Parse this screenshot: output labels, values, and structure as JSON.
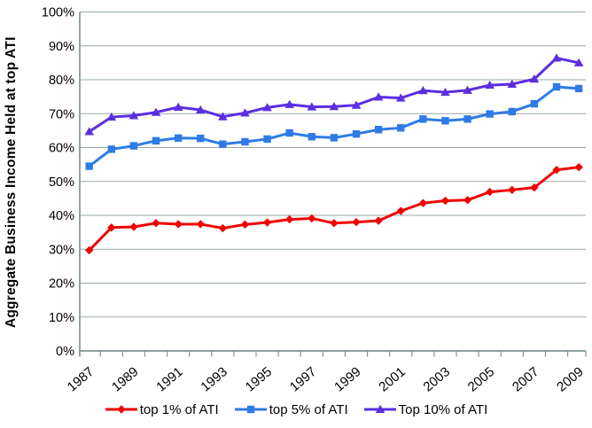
{
  "chart_data": {
    "type": "line",
    "title": "",
    "ylabel": "Aggregate Business Income Held at top ATI",
    "xlabel": "",
    "x": [
      1987,
      1988,
      1989,
      1990,
      1991,
      1992,
      1993,
      1994,
      1995,
      1996,
      1997,
      1998,
      1999,
      2000,
      2001,
      2002,
      2003,
      2004,
      2005,
      2006,
      2007,
      2008,
      2009
    ],
    "x_tick_labels": [
      "1987",
      "1989",
      "1991",
      "1993",
      "1995",
      "1997",
      "1999",
      "2001",
      "2003",
      "2005",
      "2007",
      "2009"
    ],
    "y_tick_labels": [
      "0%",
      "10%",
      "20%",
      "30%",
      "40%",
      "50%",
      "60%",
      "70%",
      "80%",
      "90%",
      "100%"
    ],
    "ylim": [
      0,
      100
    ],
    "grid": "horizontal",
    "legend_position": "bottom",
    "axis_color": "#7E9494",
    "grid_color": "#9AA8A8",
    "text_color": "#000000",
    "series": [
      {
        "name": "top 1% of ATI",
        "marker": "diamond",
        "color": "#EE0400",
        "values": [
          29.7,
          36.4,
          36.6,
          37.7,
          37.4,
          37.4,
          36.2,
          37.3,
          37.9,
          38.8,
          39.1,
          37.7,
          38.0,
          38.4,
          41.3,
          43.6,
          44.3,
          44.5,
          46.9,
          47.5,
          48.2,
          53.4,
          54.2
        ]
      },
      {
        "name": "top 5% of ATI",
        "marker": "square",
        "color": "#2E7BE6",
        "values": [
          54.5,
          59.5,
          60.5,
          62.0,
          62.8,
          62.7,
          61.0,
          61.7,
          62.5,
          64.3,
          63.2,
          62.9,
          64.0,
          65.3,
          65.8,
          68.4,
          67.9,
          68.4,
          69.9,
          70.6,
          72.9,
          77.9,
          77.4
        ]
      },
      {
        "name": "Top 10% of ATI",
        "marker": "triangle",
        "color": "#5B2EE1",
        "values": [
          64.7,
          69.0,
          69.4,
          70.4,
          71.9,
          71.1,
          69.1,
          70.2,
          71.8,
          72.7,
          72.0,
          72.1,
          72.5,
          74.9,
          74.6,
          76.8,
          76.3,
          76.9,
          78.4,
          78.7,
          80.2,
          86.4,
          85.0
        ]
      }
    ]
  }
}
